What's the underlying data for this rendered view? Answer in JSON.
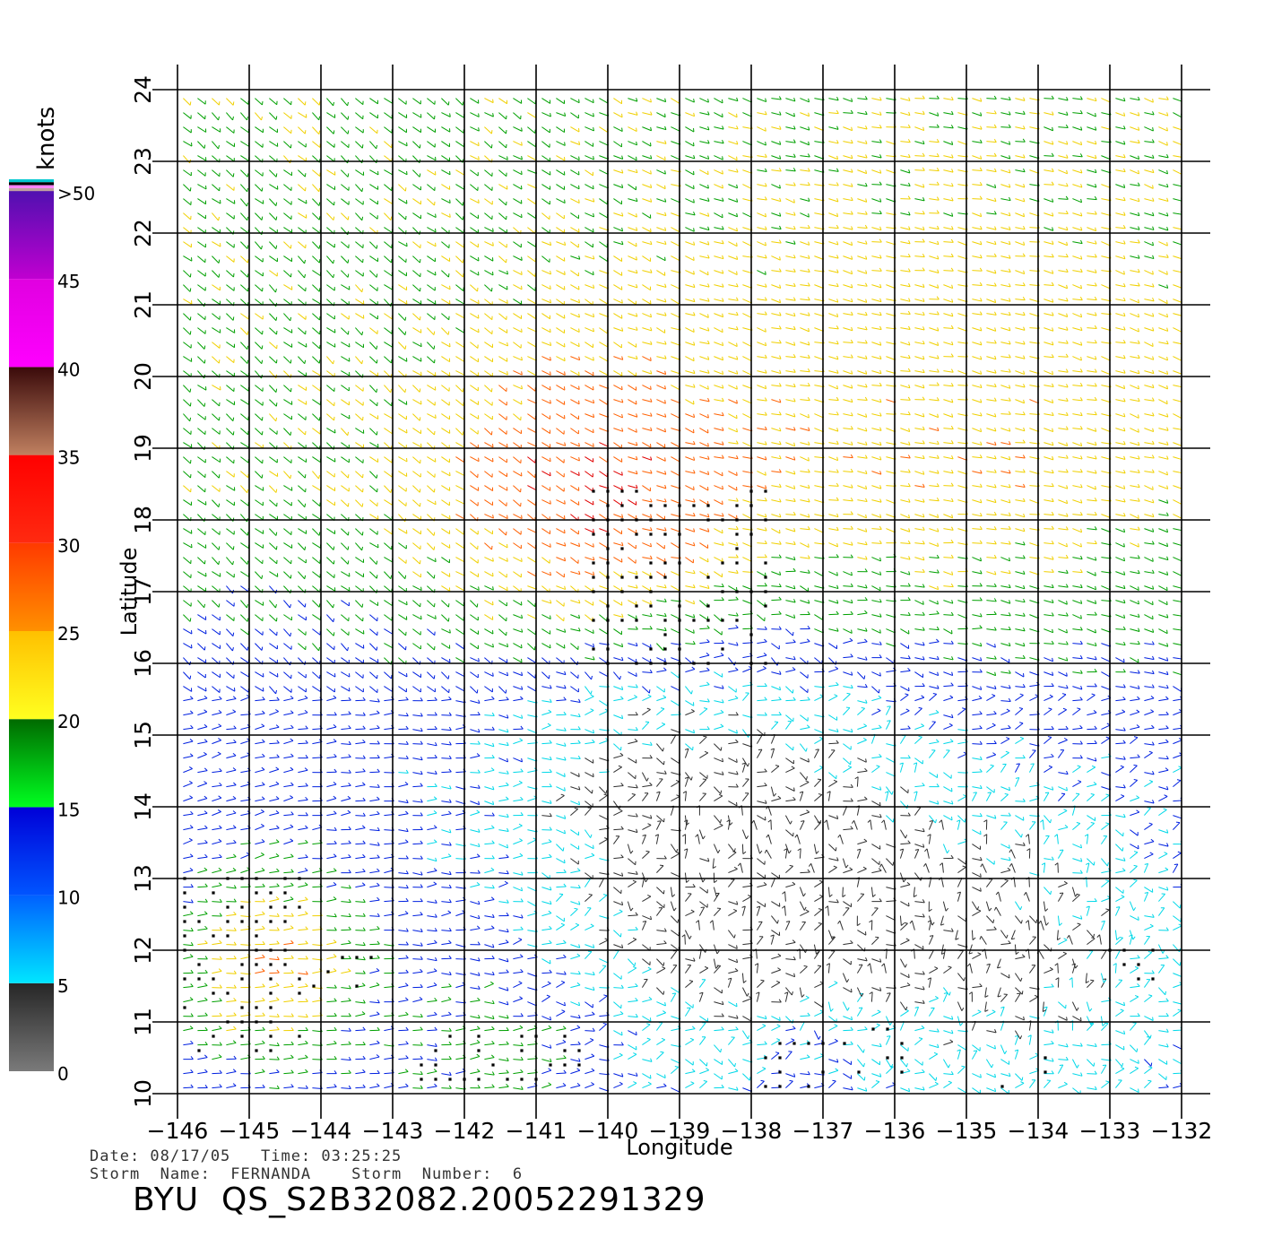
{
  "legend": {
    "unit": "knots",
    "tick_labels": [
      "0",
      "5",
      "10",
      "15",
      "20",
      "25",
      "30",
      "35",
      "40",
      "45",
      ">50"
    ],
    "tick_values": [
      0,
      5,
      10,
      15,
      20,
      25,
      30,
      35,
      40,
      45,
      50
    ],
    "colors": {
      "0-5": [
        "#7a7a7a",
        "#262626"
      ],
      "5-10": [
        "#00e6ff",
        "#0060ff"
      ],
      "10-15": [
        "#0055ff",
        "#0000d8"
      ],
      "15-20": [
        "#00ff20",
        "#006a00"
      ],
      "20-25": [
        "#ffff20",
        "#ffc000"
      ],
      "25-30": [
        "#ff9000",
        "#ff3a00"
      ],
      "30-35": [
        "#ff2a10",
        "#ff0000"
      ],
      "35-40": [
        "#c08060",
        "#3a0a0a"
      ],
      "40-45": [
        "#ff00ff",
        "#e000e0"
      ],
      "45-50": [
        "#c000d0",
        "#5010b0"
      ],
      "top_stripes": [
        "#00c8d0",
        "#000000",
        "#ff80ff",
        "#c0a0a0"
      ]
    }
  },
  "map": {
    "x_axis": {
      "label": "Longitude",
      "range": [
        -146,
        -132
      ],
      "tick_labels": [
        "−146",
        "−145",
        "−144",
        "−143",
        "−142",
        "−141",
        "−140",
        "−139",
        "−138",
        "−137",
        "−136",
        "−135",
        "−134",
        "−133",
        "−132"
      ]
    },
    "y_axis": {
      "label": "Latitude",
      "range": [
        10,
        24
      ],
      "tick_labels": [
        "10",
        "11",
        "12",
        "13",
        "14",
        "15",
        "16",
        "17",
        "18",
        "19",
        "20",
        "21",
        "22",
        "23",
        "24"
      ]
    },
    "wind_colors": {
      "calm": "#303030",
      "light": "#00d8e8",
      "moderate": "#0020e0",
      "fresh": "#00a000",
      "strong": "#f0d000",
      "gale": "#ff6000",
      "storm": "#e00000",
      "rain_flag": "#000000"
    }
  },
  "footer": {
    "date_line": "Date: 08/17/05   Time: 03:25:25",
    "storm_line": "Storm  Name:  FERNANDA    Storm  Number:  6",
    "product_id": "BYU  QS_S2B32082.20052291329"
  }
}
